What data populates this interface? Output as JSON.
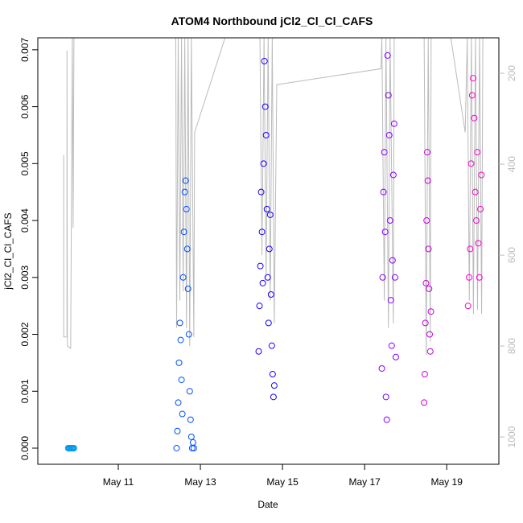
{
  "chart_data": {
    "type": "scatter",
    "title": "ATOM4 Northbound jCl2_Cl_Cl_CAFS",
    "x_label": "Date",
    "y_label": "jCl2_Cl_Cl_CAFS",
    "xlim": [
      9.04,
      20.27
    ],
    "xticks": [
      {
        "value": 11,
        "label": "May 11"
      },
      {
        "value": 13,
        "label": "May 13"
      },
      {
        "value": 15,
        "label": "May 15"
      },
      {
        "value": 17,
        "label": "May 17"
      },
      {
        "value": 19,
        "label": "May 19"
      }
    ],
    "ylim": [
      -0.000283,
      0.00721
    ],
    "yticks": [
      {
        "value": 0,
        "label": "0.000"
      },
      {
        "value": 0.001,
        "label": "0.001"
      },
      {
        "value": 0.002,
        "label": "0.002"
      },
      {
        "value": 0.003,
        "label": "0.003"
      },
      {
        "value": 0.004,
        "label": "0.004"
      },
      {
        "value": 0.005,
        "label": "0.005"
      },
      {
        "value": 0.006,
        "label": "0.006"
      },
      {
        "value": 0.007,
        "label": "0.007"
      }
    ],
    "y2lim": [
      1060,
      122
    ],
    "y2ticks": [
      200,
      400,
      600,
      800,
      1000
    ],
    "y2_color": "#bbbbbb",
    "series": [
      {
        "type": "line",
        "axis": "y2",
        "color": "#bbbbbb",
        "x": [
          9.67,
          9.67,
          9.75,
          9.75,
          9.76,
          9.84,
          9.88,
          9.9,
          9.92,
          12.4,
          12.42,
          12.46,
          12.5,
          12.54,
          12.58,
          12.62,
          12.66,
          12.7,
          12.74,
          12.78,
          12.84,
          12.86,
          13.6,
          14.45,
          14.5,
          14.55,
          14.6,
          14.65,
          14.7,
          14.75,
          14.8,
          14.86,
          17.4,
          17.42,
          17.48,
          17.52,
          17.58,
          17.62,
          17.7,
          17.72,
          18.45,
          18.5,
          18.55,
          18.6,
          18.62,
          19.1,
          19.45,
          19.5,
          19.55,
          19.6,
          19.65,
          19.7,
          19.75,
          19.8,
          19.85,
          19.88
        ],
        "values": [
          380,
          780,
          780,
          150,
          800,
          805,
          122,
          540,
          122,
          122,
          760,
          122,
          700,
          122,
          680,
          122,
          760,
          122,
          800,
          122,
          780,
          330,
          122,
          122,
          600,
          122,
          650,
          122,
          700,
          122,
          750,
          225,
          190,
          122,
          700,
          122,
          760,
          122,
          750,
          122,
          122,
          820,
          122,
          790,
          122,
          122,
          330,
          122,
          700,
          122,
          730,
          122,
          720,
          122,
          730,
          122
        ]
      },
      {
        "type": "scatter",
        "color": "#0099ee",
        "x": [
          9.78,
          9.8,
          9.82,
          9.84,
          9.86,
          9.88,
          9.9,
          9.92
        ],
        "values": [
          0,
          0,
          0,
          0,
          0,
          0,
          0,
          0
        ]
      },
      {
        "type": "scatter",
        "color": "#0050ff",
        "x": [
          12.42,
          12.44,
          12.46,
          12.48,
          12.5,
          12.52,
          12.54,
          12.56,
          12.58,
          12.6,
          12.62,
          12.64,
          12.66,
          12.68,
          12.7,
          12.72,
          12.74,
          12.76,
          12.78,
          12.8,
          12.82,
          12.84
        ],
        "values": [
          0,
          0.0003,
          0.0008,
          0.0015,
          0.0022,
          0.0019,
          0.0012,
          0.0006,
          0.003,
          0.0038,
          0.0045,
          0.0047,
          0.0042,
          0.0035,
          0.0028,
          0.002,
          0.001,
          0.0005,
          0.0002,
          0,
          0.0001,
          0
        ]
      },
      {
        "type": "scatter",
        "color": "#1a00ff",
        "x": [
          14.42,
          14.44,
          14.46,
          14.48,
          14.5,
          14.52,
          14.54,
          14.56,
          14.58,
          14.6,
          14.62,
          14.64,
          14.66,
          14.68,
          14.7,
          14.72,
          14.74,
          14.76,
          14.78,
          14.8
        ],
        "values": [
          0.0017,
          0.0025,
          0.0032,
          0.0045,
          0.0038,
          0.0029,
          0.005,
          0.0068,
          0.006,
          0.0055,
          0.0042,
          0.003,
          0.0022,
          0.0035,
          0.0041,
          0.0027,
          0.0018,
          0.0013,
          0.0009,
          0.0011
        ]
      },
      {
        "type": "scatter",
        "color": "#8800ff",
        "x": [
          17.42,
          17.44,
          17.46,
          17.48,
          17.5,
          17.52,
          17.54,
          17.56,
          17.58,
          17.6,
          17.62,
          17.64,
          17.66,
          17.68,
          17.7,
          17.72,
          17.74,
          17.76
        ],
        "values": [
          0.0014,
          0.003,
          0.0045,
          0.0052,
          0.0038,
          0.0009,
          0.0005,
          0.0069,
          0.0062,
          0.0055,
          0.004,
          0.0026,
          0.0018,
          0.0033,
          0.0048,
          0.0057,
          0.003,
          0.0016
        ]
      },
      {
        "type": "scatter",
        "color": "#cc00dd",
        "x": [
          18.45,
          18.465,
          18.48,
          18.495,
          18.51,
          18.525,
          18.54,
          18.555,
          18.57,
          18.585,
          18.6,
          18.615
        ],
        "values": [
          0.0008,
          0.0013,
          0.0022,
          0.0029,
          0.004,
          0.0052,
          0.0047,
          0.0035,
          0.0028,
          0.002,
          0.0017,
          0.0024
        ]
      },
      {
        "type": "scatter",
        "color": "#ff00cc",
        "x": [
          19.52,
          19.545,
          19.57,
          19.595,
          19.62,
          19.645,
          19.67,
          19.695,
          19.72,
          19.745,
          19.77,
          19.795,
          19.82,
          19.845
        ],
        "values": [
          0.0025,
          0.003,
          0.0035,
          0.005,
          0.0062,
          0.0065,
          0.0058,
          0.0045,
          0.004,
          0.0052,
          0.0036,
          0.003,
          0.0042,
          0.0048
        ]
      }
    ]
  }
}
